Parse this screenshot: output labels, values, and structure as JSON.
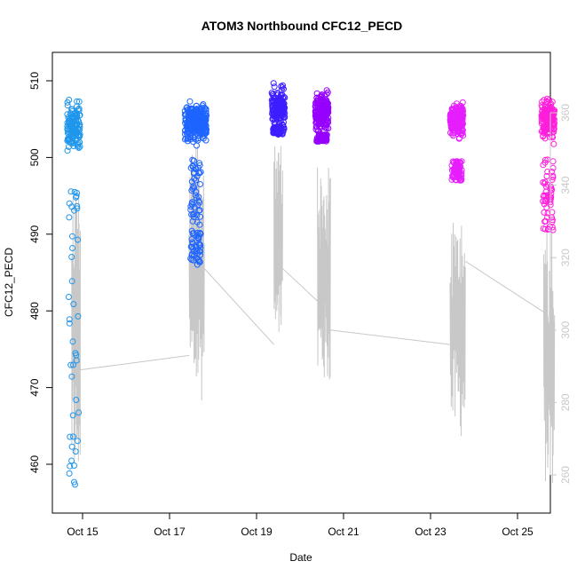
{
  "chart_data": {
    "type": "scatter",
    "title": "ATOM3 Northbound CFC12_PECD",
    "xlabel": "Date",
    "ylabel": "CFC12_PECD",
    "x_ticks": [
      "Oct 15",
      "Oct 17",
      "Oct 19",
      "Oct 21",
      "Oct 23",
      "Oct 25"
    ],
    "y_ticks": [
      460,
      470,
      480,
      490,
      500,
      510
    ],
    "y_ticks_right": [
      260,
      280,
      300,
      320,
      340,
      360
    ],
    "ylim": [
      455.5,
      513.5
    ],
    "ylim_right": [
      252,
      373
    ],
    "grid": false,
    "colors": {
      "gray_line": "#c8c8c8",
      "right_axis": "#c8c8c8",
      "cluster_1": "#1e96ec",
      "cluster_2": "#1e64ff",
      "cluster_3": "#3c1eff",
      "cluster_4": "#9600ff",
      "cluster_5": "#e61eff",
      "cluster_6": "#ff1edc"
    },
    "clusters": [
      {
        "date": "Oct 14.8",
        "center": 504,
        "spread": 2.5,
        "n": 120,
        "tail": [
          473,
          497,
          456.5,
          468.5
        ]
      },
      {
        "date": "Oct 17.6",
        "center": 504.5,
        "spread": 2.0,
        "n": 260,
        "tail": [
          486,
          500,
          490,
          496
        ]
      },
      {
        "date": "Oct 19.5",
        "center": 506.5,
        "spread": 2.0,
        "n": 150,
        "tail": [
          503,
          504
        ]
      },
      {
        "date": "Oct 20.5",
        "center": 506,
        "spread": 2.2,
        "n": 200,
        "tail": [
          502,
          503
        ]
      },
      {
        "date": "Oct 23.6",
        "center": 505,
        "spread": 1.5,
        "n": 220,
        "tail": [
          497,
          499.5
        ]
      },
      {
        "date": "Oct 25.7",
        "center": 505,
        "spread": 2.0,
        "n": 160,
        "tail": [
          490.5,
          500
        ]
      }
    ],
    "secondary_series": {
      "name": "",
      "color": "#c8c8c8",
      "segments": [
        {
          "start": "Oct 14.75",
          "end": "Oct 14.95",
          "min": 258,
          "max": 342
        },
        {
          "start": "Oct 17.45",
          "end": "Oct 17.8",
          "min": 280,
          "max": 351
        },
        {
          "start": "Oct 19.4",
          "end": "Oct 19.6",
          "min": 294,
          "max": 351
        },
        {
          "start": "Oct 20.4",
          "end": "Oct 20.7",
          "min": 284,
          "max": 345
        },
        {
          "start": "Oct 23.45",
          "end": "Oct 23.8",
          "min": 270,
          "max": 332
        },
        {
          "start": "Oct 25.6",
          "end": "Oct 25.85",
          "min": 257,
          "max": 330
        }
      ],
      "connectors": [
        {
          "from": "Oct 14.95",
          "to": "Oct 17.45",
          "from_y": 289,
          "to_y": 293
        },
        {
          "from": "Oct 17.8",
          "to": "Oct 19.4",
          "from_y": 317,
          "to_y": 296
        },
        {
          "from": "Oct 19.6",
          "to": "Oct 20.4",
          "from_y": 317,
          "to_y": 308
        },
        {
          "from": "Oct 20.7",
          "to": "Oct 23.45",
          "from_y": 300,
          "to_y": 296
        },
        {
          "from": "Oct 23.8",
          "to": "Oct 25.6",
          "from_y": 319,
          "to_y": 305
        }
      ]
    }
  }
}
